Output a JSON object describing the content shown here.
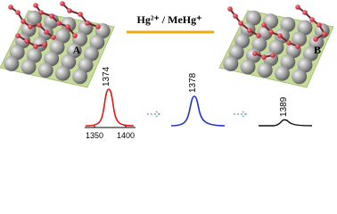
{
  "labels": {
    "a": "A",
    "b": "B",
    "reagent": "Hg²⁺ / MeHg⁺"
  },
  "spectra": [
    {
      "peak": 1374
    },
    {
      "peak": 1378
    },
    {
      "peak": 1389
    }
  ],
  "axis_ticks": [
    1350,
    1400
  ]
}
